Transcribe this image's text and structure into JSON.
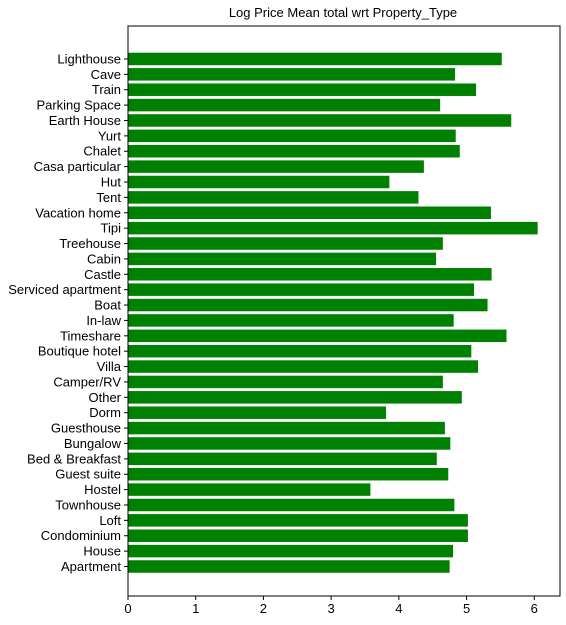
{
  "chart_data": {
    "type": "bar",
    "orientation": "horizontal",
    "title": "Log Price Mean total wrt Property_Type",
    "xlabel": "",
    "ylabel": "",
    "xlim": [
      0,
      6.38
    ],
    "x_ticks": [
      "0",
      "1",
      "2",
      "3",
      "4",
      "5",
      "6"
    ],
    "grid": false,
    "bar_color": "#008000",
    "categories": [
      "Apartment",
      "House",
      "Condominium",
      "Loft",
      "Townhouse",
      "Hostel",
      "Guest suite",
      "Bed & Breakfast",
      "Bungalow",
      "Guesthouse",
      "Dorm",
      "Other",
      "Camper/RV",
      "Villa",
      "Boutique hotel",
      "Timeshare",
      "In-law",
      "Boat",
      "Serviced apartment",
      "Castle",
      "Cabin",
      "Treehouse",
      "Tipi",
      "Vacation home",
      "Tent",
      "Hut",
      "Casa particular",
      "Chalet",
      "Yurt",
      "Earth House",
      "Parking Space",
      "Train",
      "Cave",
      "Lighthouse"
    ],
    "values": [
      4.75,
      4.8,
      5.02,
      5.02,
      4.82,
      3.58,
      4.73,
      4.56,
      4.76,
      4.68,
      3.81,
      4.93,
      4.65,
      5.17,
      5.07,
      5.59,
      4.81,
      5.31,
      5.11,
      5.37,
      4.55,
      4.65,
      6.05,
      5.36,
      4.29,
      3.86,
      4.37,
      4.9,
      4.84,
      5.66,
      4.61,
      5.14,
      4.83,
      5.52
    ]
  }
}
